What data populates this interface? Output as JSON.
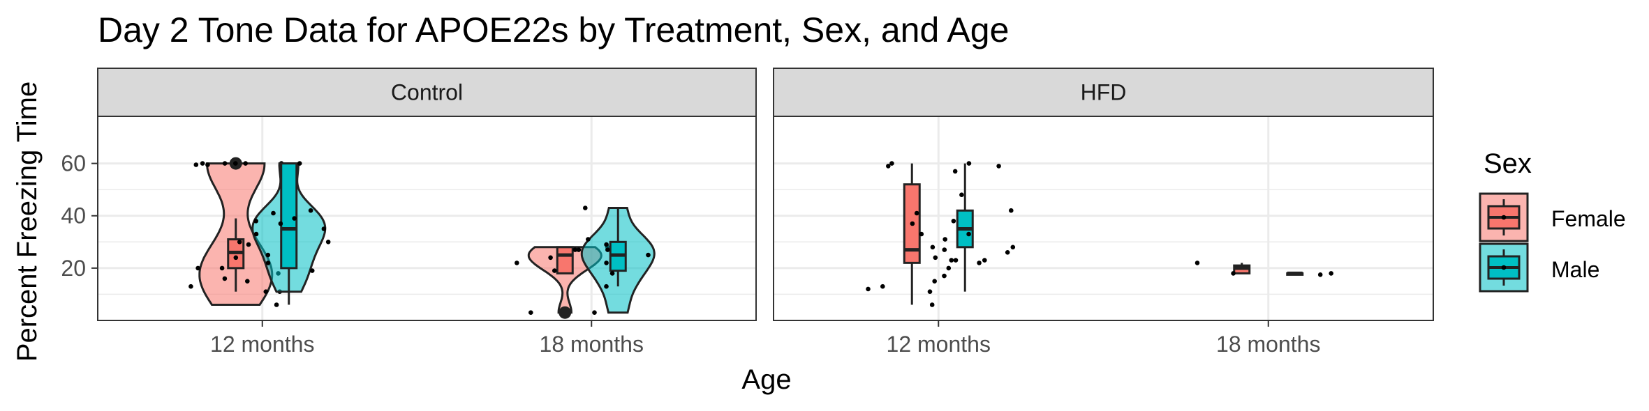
{
  "chart_data": {
    "type": "violin+boxplot+jitter",
    "title": "Day 2 Tone Data for APOE22s by Treatment, Sex, and Age",
    "xlabel": "Age",
    "ylabel": "Percent Freezing Time",
    "ylim": [
      0,
      78
    ],
    "yticks": [
      20,
      40,
      60
    ],
    "categories": [
      "12 months",
      "18 months"
    ],
    "legend": {
      "title": "Sex",
      "position": "right",
      "entries": [
        {
          "name": "Female",
          "color": "#F8766D"
        },
        {
          "name": "Male",
          "color": "#00BFC4"
        }
      ]
    },
    "grid": true,
    "panels": [
      {
        "name": "Control",
        "groups": [
          {
            "age": "12 months",
            "sex": "Female",
            "violin": true,
            "box": {
              "min": 11,
              "q1": 20,
              "median": 26,
              "q3": 31,
              "max": 39
            },
            "outliers": [
              60
            ],
            "points": [
              6,
              11,
              13,
              16,
              18,
              20,
              20,
              24,
              29,
              59.5,
              59.5,
              60,
              60,
              60,
              60
            ]
          },
          {
            "age": "12 months",
            "sex": "Male",
            "violin": true,
            "box": {
              "min": 6,
              "q1": 20,
              "median": 35,
              "q3": 60,
              "max": 60
            },
            "outliers": [],
            "points": [
              11,
              15,
              19,
              22,
              25,
              30,
              30,
              33,
              35,
              37,
              38,
              39,
              41,
              42,
              60,
              60
            ]
          },
          {
            "age": "18 months",
            "sex": "Female",
            "violin": true,
            "box": {
              "min": 18,
              "q1": 18,
              "median": 25,
              "q3": 28,
              "max": 28
            },
            "outliers": [
              3
            ],
            "points": [
              3,
              19,
              22,
              24,
              24,
              27,
              27,
              28
            ]
          },
          {
            "age": "18 months",
            "sex": "Male",
            "violin": true,
            "box": {
              "min": 13,
              "q1": 19,
              "median": 25,
              "q3": 30,
              "max": 43
            },
            "outliers": [],
            "points": [
              3,
              13,
              18,
              22,
              25,
              27,
              29,
              31,
              43
            ]
          }
        ]
      },
      {
        "name": "HFD",
        "groups": [
          {
            "age": "12 months",
            "sex": "Female",
            "violin": false,
            "box": {
              "min": 6,
              "q1": 22,
              "median": 27,
              "q3": 52,
              "max": 60
            },
            "outliers": [],
            "points": [
              6,
              12,
              13,
              15,
              17,
              23,
              23,
              27,
              28,
              33,
              37,
              48,
              59,
              60
            ]
          },
          {
            "age": "12 months",
            "sex": "Male",
            "violin": false,
            "box": {
              "min": 11,
              "q1": 28,
              "median": 35,
              "q3": 42,
              "max": 60
            },
            "outliers": [],
            "points": [
              11,
              20,
              22,
              23,
              24,
              26,
              28,
              31,
              33,
              38,
              41,
              42,
              57,
              59,
              60
            ]
          },
          {
            "age": "18 months",
            "sex": "Female",
            "violin": false,
            "box": {
              "min": 18,
              "q1": 18,
              "median": 20,
              "q3": 21,
              "max": 22
            },
            "outliers": [],
            "points": [
              18,
              22
            ]
          },
          {
            "age": "18 months",
            "sex": "Male",
            "violin": false,
            "box": {
              "min": 18,
              "q1": 18,
              "median": 18,
              "q3": 18,
              "max": 18
            },
            "outliers": [],
            "points": [
              17.5,
              18
            ]
          }
        ]
      }
    ]
  }
}
